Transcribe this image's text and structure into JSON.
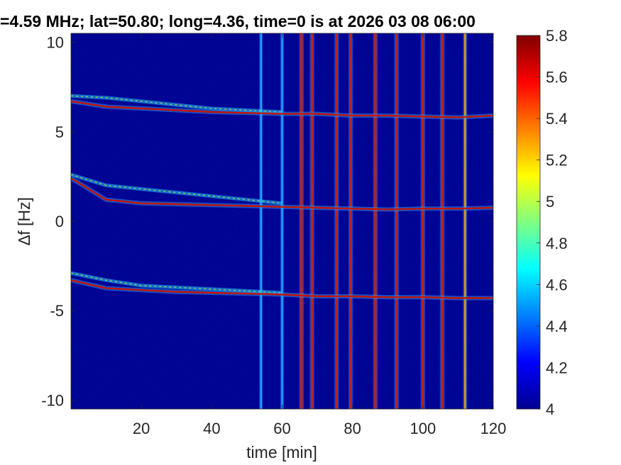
{
  "chart_data": {
    "type": "heatmap",
    "title": "=4.59 MHz;  lat=50.80; long=4.36, time=0 is at 2026 03 08 06:00",
    "xlabel": "time [min]",
    "ylabel": "∆f [Hz]",
    "xlim": [
      0,
      120
    ],
    "ylim": [
      -10.5,
      10.5
    ],
    "xticks": [
      20,
      40,
      60,
      80,
      100,
      120
    ],
    "xtick_labels": [
      "20",
      "40",
      "60",
      "80",
      "100",
      "120"
    ],
    "yticks": [
      -10,
      -5,
      0,
      5,
      10
    ],
    "ytick_labels": [
      "-10",
      "-5",
      "0",
      "5",
      "10"
    ],
    "colormap": "jet",
    "colorbar": {
      "range": [
        4,
        5.8
      ],
      "ticks": [
        4,
        4.2,
        4.4,
        4.6,
        4.8,
        5,
        5.2,
        5.4,
        5.6,
        5.8
      ],
      "tick_labels": [
        "4",
        "4.2",
        "4.4",
        "4.6",
        "4.8",
        "5",
        "5.2",
        "5.4",
        "5.6",
        "5.8"
      ]
    },
    "background_color": "#00008f",
    "traces": [
      {
        "name": "upper",
        "x": [
          0,
          10,
          20,
          30,
          40,
          50,
          60,
          70,
          80,
          90,
          100,
          110,
          120
        ],
        "y": [
          6.7,
          6.4,
          6.3,
          6.2,
          6.1,
          6.05,
          6.0,
          6.0,
          5.9,
          5.9,
          5.85,
          5.8,
          5.9
        ]
      },
      {
        "name": "middle",
        "x": [
          0,
          10,
          20,
          30,
          40,
          50,
          60,
          70,
          80,
          90,
          100,
          110,
          120
        ],
        "y": [
          2.4,
          1.2,
          1.0,
          0.95,
          0.9,
          0.85,
          0.8,
          0.75,
          0.7,
          0.65,
          0.7,
          0.7,
          0.75
        ]
      },
      {
        "name": "lower",
        "x": [
          0,
          10,
          20,
          30,
          40,
          50,
          60,
          70,
          80,
          90,
          100,
          110,
          120
        ],
        "y": [
          -3.3,
          -3.75,
          -3.85,
          -3.95,
          -4.0,
          -4.05,
          -4.1,
          -4.2,
          -4.2,
          -4.25,
          -4.25,
          -4.3,
          -4.3
        ]
      }
    ],
    "secondary_traces": [
      {
        "name": "upper-diffuse",
        "x": [
          0,
          10,
          20,
          30,
          40,
          50,
          60
        ],
        "y": [
          7.0,
          6.9,
          6.7,
          6.5,
          6.3,
          6.2,
          6.1
        ]
      },
      {
        "name": "middle-diffuse",
        "x": [
          0,
          10,
          20,
          30,
          40,
          50,
          60
        ],
        "y": [
          2.6,
          2.0,
          1.8,
          1.6,
          1.4,
          1.2,
          1.0
        ]
      },
      {
        "name": "lower-diffuse",
        "x": [
          0,
          10,
          20,
          30,
          40,
          50,
          60
        ],
        "y": [
          -2.9,
          -3.3,
          -3.6,
          -3.7,
          -3.8,
          -3.9,
          -4.0
        ]
      }
    ],
    "vertical_bands": [
      {
        "x": 54,
        "intensity": "low"
      },
      {
        "x": 60,
        "intensity": "low"
      },
      {
        "x": 65.5,
        "intensity": "high"
      },
      {
        "x": 68.5,
        "intensity": "high"
      },
      {
        "x": 75.5,
        "intensity": "high"
      },
      {
        "x": 79.5,
        "intensity": "high"
      },
      {
        "x": 86.5,
        "intensity": "high"
      },
      {
        "x": 92.5,
        "intensity": "high"
      },
      {
        "x": 100,
        "intensity": "high"
      },
      {
        "x": 105.5,
        "intensity": "high"
      },
      {
        "x": 112,
        "intensity": "medium"
      }
    ]
  }
}
